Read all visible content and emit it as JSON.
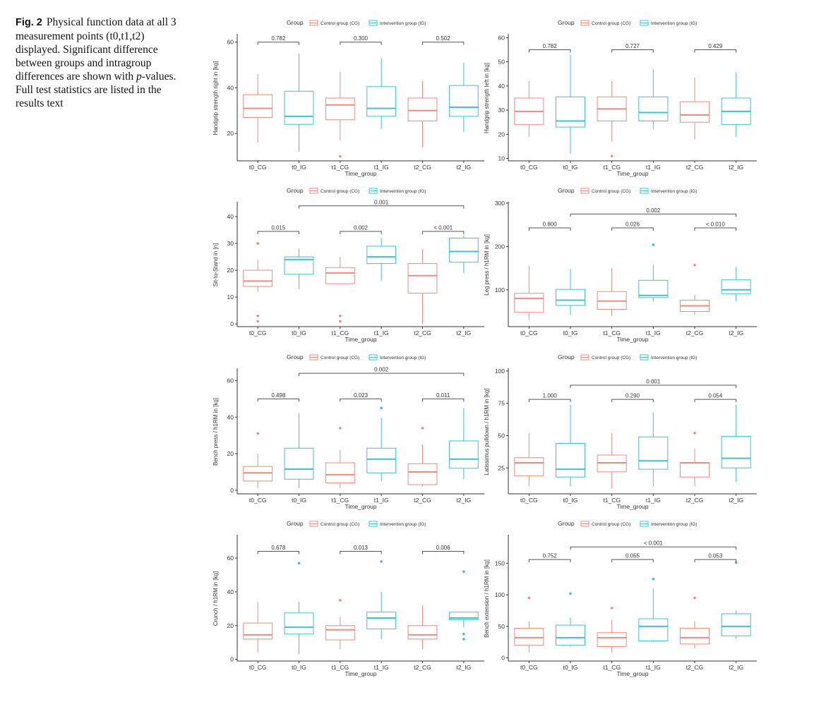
{
  "caption": {
    "fig_label": "Fig. 2",
    "text_before_italic": "Physical function data at all 3 measurement points (t0,t1,t2) displayed. Significant difference between groups and intragroup differences are shown with ",
    "italic": "p",
    "text_after_italic": "-values. Full test statistics are listed in the results text"
  },
  "colors": {
    "control": "#f08a80",
    "intervention": "#3cc4cc",
    "axis": "#333333",
    "text": "#333333"
  },
  "chart_data": [
    {
      "type": "boxplot",
      "ylabel": "Handgrip strength right in [kg]",
      "xlabel": "Time_group",
      "legend_title": "Group",
      "legend_labels": [
        "Control group (CG)",
        "Intervention group (IG)"
      ],
      "categories": [
        "t0_CG",
        "t0_IG",
        "t1_CG",
        "t1_IG",
        "t2_CG",
        "t2_IG"
      ],
      "yticks": [
        20,
        40,
        60
      ],
      "ylim": [
        8,
        63
      ],
      "boxes": [
        {
          "group": "CG",
          "min": 16,
          "q1": 27,
          "median": 31,
          "q3": 37,
          "max": 46,
          "outliers": []
        },
        {
          "group": "IG",
          "min": 12,
          "q1": 24,
          "median": 27.5,
          "q3": 38.5,
          "max": 55,
          "outliers": []
        },
        {
          "group": "CG",
          "min": 17,
          "q1": 26,
          "median": 32.5,
          "q3": 35.5,
          "max": 47,
          "outliers": [
            10
          ]
        },
        {
          "group": "IG",
          "min": 22,
          "q1": 27.5,
          "median": 31,
          "q3": 40.5,
          "max": 53,
          "outliers": []
        },
        {
          "group": "CG",
          "min": 14,
          "q1": 25.5,
          "median": 30,
          "q3": 35.5,
          "max": 43,
          "outliers": []
        },
        {
          "group": "IG",
          "min": 20.5,
          "q1": 27.5,
          "median": 31.5,
          "q3": 41,
          "max": 51,
          "outliers": []
        }
      ],
      "pvalues": [
        {
          "from": 0,
          "to": 1,
          "label": "0.782",
          "y": 60
        },
        {
          "from": 2,
          "to": 3,
          "label": "0.300",
          "y": 60
        },
        {
          "from": 4,
          "to": 5,
          "label": "0.502",
          "y": 60
        }
      ]
    },
    {
      "type": "boxplot",
      "ylabel": "Handgrip strength left in [kg]",
      "xlabel": "Time_group",
      "legend_title": "Group",
      "legend_labels": [
        "Control group (CG)",
        "Intervention group (IG)"
      ],
      "categories": [
        "t0_CG",
        "t0_IG",
        "t1_CG",
        "t1_IG",
        "t2_CG",
        "t2_IG"
      ],
      "yticks": [
        10,
        20,
        30,
        40,
        50,
        60
      ],
      "ylim": [
        9,
        61
      ],
      "boxes": [
        {
          "group": "CG",
          "min": 19,
          "q1": 24,
          "median": 29.5,
          "q3": 35,
          "max": 42,
          "outliers": []
        },
        {
          "group": "IG",
          "min": 12,
          "q1": 23,
          "median": 25.5,
          "q3": 35.5,
          "max": 53,
          "outliers": []
        },
        {
          "group": "CG",
          "min": 17,
          "q1": 25.5,
          "median": 30.5,
          "q3": 35.5,
          "max": 42,
          "outliers": [
            11
          ]
        },
        {
          "group": "IG",
          "min": 22,
          "q1": 25.5,
          "median": 29,
          "q3": 35.5,
          "max": 47,
          "outliers": []
        },
        {
          "group": "CG",
          "min": 18,
          "q1": 25,
          "median": 28,
          "q3": 33.5,
          "max": 43.5,
          "outliers": []
        },
        {
          "group": "IG",
          "min": 19,
          "q1": 24,
          "median": 29.5,
          "q3": 35,
          "max": 45.5,
          "outliers": []
        }
      ],
      "pvalues": [
        {
          "from": 0,
          "to": 1,
          "label": "0.782",
          "y": 55
        },
        {
          "from": 2,
          "to": 3,
          "label": "0.727",
          "y": 55
        },
        {
          "from": 4,
          "to": 5,
          "label": "0.429",
          "y": 55
        }
      ]
    },
    {
      "type": "boxplot",
      "ylabel": "Sit-to-Stand in [n]",
      "xlabel": "Time_group",
      "legend_title": "Group",
      "legend_labels": [
        "Control group (CG)",
        "Intervention group (IG)"
      ],
      "categories": [
        "t0_CG",
        "t0_IG",
        "t1_CG",
        "t1_IG",
        "t2_CG",
        "t2_IG"
      ],
      "yticks": [
        0,
        10,
        20,
        30,
        40
      ],
      "ylim": [
        -1,
        45
      ],
      "boxes": [
        {
          "group": "CG",
          "min": 12,
          "q1": 14,
          "median": 16,
          "q3": 20,
          "max": 24,
          "outliers": [
            30,
            3,
            1
          ]
        },
        {
          "group": "IG",
          "min": 13,
          "q1": 18.5,
          "median": 24,
          "q3": 25,
          "max": 28,
          "outliers": []
        },
        {
          "group": "CG",
          "min": 15,
          "q1": 15,
          "median": 19,
          "q3": 21,
          "max": 25,
          "outliers": [
            3,
            1
          ]
        },
        {
          "group": "IG",
          "min": 16,
          "q1": 22.5,
          "median": 25,
          "q3": 29,
          "max": 32,
          "outliers": []
        },
        {
          "group": "CG",
          "min": 0,
          "q1": 11.5,
          "median": 18,
          "q3": 22.5,
          "max": 28,
          "outliers": []
        },
        {
          "group": "IG",
          "min": 19,
          "q1": 23,
          "median": 27,
          "q3": 32,
          "max": 33,
          "outliers": []
        }
      ],
      "pvalues": [
        {
          "from": 0,
          "to": 1,
          "label": "0.015",
          "y": 34.5
        },
        {
          "from": 2,
          "to": 3,
          "label": "0.002",
          "y": 34.5
        },
        {
          "from": 4,
          "to": 5,
          "label": "< 0.001",
          "y": 34.5
        },
        {
          "from": 1,
          "to": 5,
          "label": "0.001",
          "y": 44
        }
      ]
    },
    {
      "type": "boxplot",
      "ylabel": "Leg press / h1RM in [kg]",
      "xlabel": "Time_group",
      "legend_title": "Group",
      "legend_labels": [
        "Control group (CG)",
        "Intervention group (IG)"
      ],
      "categories": [
        "t0_CG",
        "t0_IG",
        "t1_CG",
        "t1_IG",
        "t2_CG",
        "t2_IG"
      ],
      "yticks": [
        100,
        200,
        300
      ],
      "ylim": [
        15,
        300
      ],
      "boxes": [
        {
          "group": "CG",
          "min": 30,
          "q1": 48,
          "median": 80,
          "q3": 92,
          "max": 155,
          "outliers": []
        },
        {
          "group": "IG",
          "min": 42,
          "q1": 64,
          "median": 76,
          "q3": 101,
          "max": 148,
          "outliers": []
        },
        {
          "group": "CG",
          "min": 40,
          "q1": 55,
          "median": 74,
          "q3": 96,
          "max": 150,
          "outliers": []
        },
        {
          "group": "IG",
          "min": 73,
          "q1": 82,
          "median": 87,
          "q3": 122,
          "max": 158,
          "outliers": [
            204
          ]
        },
        {
          "group": "CG",
          "min": 43,
          "q1": 50,
          "median": 63,
          "q3": 76,
          "max": 88,
          "outliers": [
            157
          ]
        },
        {
          "group": "IG",
          "min": 74,
          "q1": 91,
          "median": 100,
          "q3": 123,
          "max": 153,
          "outliers": []
        }
      ],
      "pvalues": [
        {
          "from": 0,
          "to": 1,
          "label": "0.800",
          "y": 243
        },
        {
          "from": 2,
          "to": 3,
          "label": "0.026",
          "y": 243
        },
        {
          "from": 4,
          "to": 5,
          "label": "< 0.010",
          "y": 243
        },
        {
          "from": 1,
          "to": 5,
          "label": "0.002",
          "y": 275
        }
      ]
    },
    {
      "type": "boxplot",
      "ylabel": "Bench press / h1RM in [kg]",
      "xlabel": "Time_group",
      "legend_title": "Group",
      "legend_labels": [
        "Control group (CG)",
        "Intervention group (IG)"
      ],
      "categories": [
        "t0_CG",
        "t0_IG",
        "t1_CG",
        "t1_IG",
        "t2_CG",
        "t2_IG"
      ],
      "yticks": [
        0,
        20,
        40,
        60
      ],
      "ylim": [
        -2,
        66
      ],
      "boxes": [
        {
          "group": "CG",
          "min": 1,
          "q1": 5,
          "median": 9.5,
          "q3": 13,
          "max": 20,
          "outliers": [
            31
          ]
        },
        {
          "group": "IG",
          "min": 1,
          "q1": 6,
          "median": 11.5,
          "q3": 23,
          "max": 42,
          "outliers": []
        },
        {
          "group": "CG",
          "min": 1,
          "q1": 4,
          "median": 8.5,
          "q3": 15,
          "max": 22,
          "outliers": [
            34
          ]
        },
        {
          "group": "IG",
          "min": 5,
          "q1": 9.5,
          "median": 17,
          "q3": 23,
          "max": 39.5,
          "outliers": [
            45
          ]
        },
        {
          "group": "CG",
          "min": 2,
          "q1": 3,
          "median": 10,
          "q3": 14.5,
          "max": 25,
          "outliers": [
            34
          ]
        },
        {
          "group": "IG",
          "min": 6,
          "q1": 12,
          "median": 17,
          "q3": 27,
          "max": 45,
          "outliers": []
        }
      ],
      "pvalues": [
        {
          "from": 0,
          "to": 1,
          "label": "0.498",
          "y": 50
        },
        {
          "from": 2,
          "to": 3,
          "label": "0.023",
          "y": 50
        },
        {
          "from": 4,
          "to": 5,
          "label": "0.011",
          "y": 50
        },
        {
          "from": 1,
          "to": 5,
          "label": "0.002",
          "y": 64
        }
      ]
    },
    {
      "type": "boxplot",
      "ylabel": "Latissimus pulldown / h1RM in [kg]",
      "xlabel": "Time_group",
      "legend_title": "Group",
      "legend_labels": [
        "Control group (CG)",
        "Intervention group (IG)"
      ],
      "categories": [
        "t0_CG",
        "t0_IG",
        "t1_CG",
        "t1_IG",
        "t2_CG",
        "t2_IG"
      ],
      "yticks": [
        25,
        50,
        75,
        100
      ],
      "ylim": [
        5,
        101
      ],
      "boxes": [
        {
          "group": "CG",
          "min": 11,
          "q1": 19,
          "median": 29,
          "q3": 33,
          "max": 52,
          "outliers": []
        },
        {
          "group": "IG",
          "min": 11,
          "q1": 18,
          "median": 24,
          "q3": 44,
          "max": 74,
          "outliers": []
        },
        {
          "group": "CG",
          "min": 9,
          "q1": 22,
          "median": 29,
          "q3": 35,
          "max": 52,
          "outliers": []
        },
        {
          "group": "IG",
          "min": 11,
          "q1": 24,
          "median": 30.5,
          "q3": 49,
          "max": 68,
          "outliers": []
        },
        {
          "group": "CG",
          "min": 11,
          "q1": 18,
          "median": 29,
          "q3": 29,
          "max": 40,
          "outliers": [
            52
          ]
        },
        {
          "group": "IG",
          "min": 14,
          "q1": 25,
          "median": 32.5,
          "q3": 49.5,
          "max": 74,
          "outliers": []
        }
      ],
      "pvalues": [
        {
          "from": 0,
          "to": 1,
          "label": "1.000",
          "y": 78
        },
        {
          "from": 2,
          "to": 3,
          "label": "0.290",
          "y": 78
        },
        {
          "from": 4,
          "to": 5,
          "label": "0.054",
          "y": 78
        },
        {
          "from": 1,
          "to": 5,
          "label": "0.001",
          "y": 89
        }
      ]
    },
    {
      "type": "boxplot",
      "ylabel": "Crunch / h1RM in [kg]",
      "xlabel": "Time_group",
      "legend_title": "Group",
      "legend_labels": [
        "Control group (CG)",
        "Intervention group (IG)"
      ],
      "categories": [
        "t0_CG",
        "t0_IG",
        "t1_CG",
        "t1_IG",
        "t2_CG",
        "t2_IG"
      ],
      "yticks": [
        0,
        20,
        40,
        60
      ],
      "ylim": [
        -1,
        73
      ],
      "boxes": [
        {
          "group": "CG",
          "min": 4,
          "q1": 12,
          "median": 14.5,
          "q3": 21.5,
          "max": 34,
          "outliers": []
        },
        {
          "group": "IG",
          "min": 3,
          "q1": 15,
          "median": 19,
          "q3": 27.5,
          "max": 34,
          "outliers": [
            57
          ]
        },
        {
          "group": "CG",
          "min": 6,
          "q1": 11.5,
          "median": 17.5,
          "q3": 20,
          "max": 25,
          "outliers": [
            35
          ]
        },
        {
          "group": "IG",
          "min": 12,
          "q1": 18,
          "median": 24.5,
          "q3": 28,
          "max": 40,
          "outliers": [
            58
          ]
        },
        {
          "group": "CG",
          "min": 6,
          "q1": 12,
          "median": 14.5,
          "q3": 20,
          "max": 32,
          "outliers": []
        },
        {
          "group": "IG",
          "min": 19,
          "q1": 23.5,
          "median": 24.5,
          "q3": 28,
          "max": 28,
          "outliers": [
            52,
            15,
            12
          ]
        }
      ],
      "pvalues": [
        {
          "from": 0,
          "to": 1,
          "label": "0.678",
          "y": 64
        },
        {
          "from": 2,
          "to": 3,
          "label": "0.013",
          "y": 64
        },
        {
          "from": 4,
          "to": 5,
          "label": "0.006",
          "y": 64
        }
      ]
    },
    {
      "type": "boxplot",
      "ylabel": "Bench extension / h1RM in [kg]",
      "xlabel": "Time_group",
      "legend_title": "Group",
      "legend_labels": [
        "Control group (CG)",
        "Intervention group (IG)"
      ],
      "categories": [
        "t0_CG",
        "t0_IG",
        "t1_CG",
        "t1_IG",
        "t2_CG",
        "t2_IG"
      ],
      "yticks": [
        0,
        50,
        100,
        150
      ],
      "ylim": [
        -5,
        193
      ],
      "boxes": [
        {
          "group": "CG",
          "min": 8,
          "q1": 20,
          "median": 32,
          "q3": 47,
          "max": 58,
          "outliers": [
            95
          ]
        },
        {
          "group": "IG",
          "min": 18,
          "q1": 20,
          "median": 32,
          "q3": 52,
          "max": 64,
          "outliers": [
            102
          ]
        },
        {
          "group": "CG",
          "min": 8,
          "q1": 18,
          "median": 32,
          "q3": 40,
          "max": 60,
          "outliers": [
            79
          ]
        },
        {
          "group": "IG",
          "min": 25,
          "q1": 27,
          "median": 50,
          "q3": 62,
          "max": 110,
          "outliers": [
            125
          ]
        },
        {
          "group": "CG",
          "min": 15,
          "q1": 22,
          "median": 32,
          "q3": 47,
          "max": 58,
          "outliers": [
            95
          ]
        },
        {
          "group": "IG",
          "min": 30,
          "q1": 35,
          "median": 50,
          "q3": 70,
          "max": 75,
          "outliers": [
            151
          ]
        }
      ],
      "pvalues": [
        {
          "from": 0,
          "to": 1,
          "label": "0.752",
          "y": 156
        },
        {
          "from": 2,
          "to": 3,
          "label": "0.055",
          "y": 156
        },
        {
          "from": 4,
          "to": 5,
          "label": "0.053",
          "y": 156
        },
        {
          "from": 1,
          "to": 5,
          "label": "< 0.001",
          "y": 176
        }
      ]
    }
  ]
}
